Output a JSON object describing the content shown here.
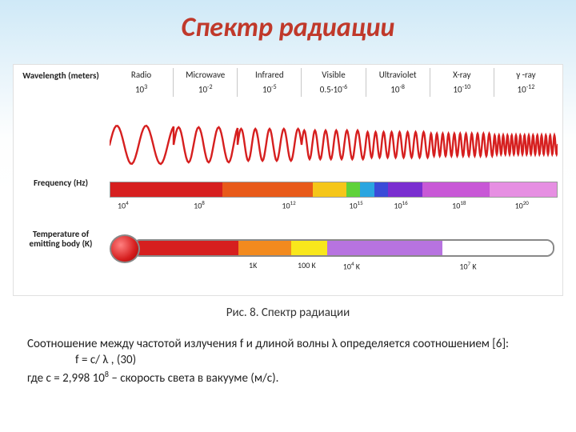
{
  "title": "Спектр радиации",
  "caption": "Рис. 8. Спектр радиации",
  "body": {
    "line1": "Соотношение между частотой излучения   f   и длиной волны   λ   определяется соотношением [6]:",
    "equation": "f = c/ λ ,         (30)",
    "line2_html": "где  c = 2,998 10<sup>8</sup> – скорость света в вакууме (м/с)."
  },
  "labels": {
    "wavelength": "Wavelength (meters)",
    "frequency": "Frequency (Hz)",
    "temperature": "Temperature of emitting body (K)"
  },
  "bands": [
    {
      "name": "Radio",
      "wl_html": "10<sup>3</sup>"
    },
    {
      "name": "Microwave",
      "wl_html": "10<sup>-2</sup>"
    },
    {
      "name": "Infrared",
      "wl_html": "10<sup>-5</sup>"
    },
    {
      "name": "Visible",
      "wl_html": "0.5·10<sup>-6</sup>"
    },
    {
      "name": "Ultraviolet",
      "wl_html": "10<sup>-8</sup>"
    },
    {
      "name": "X-ray",
      "wl_html": "10<sup>-10</sup>"
    },
    {
      "name": "γ -ray",
      "wl_html": "10<sup>-12</sup>"
    }
  ],
  "wave": {
    "stroke": "#d61f1f",
    "stroke_width": 2.4,
    "segments": [
      {
        "cycles": 2.2,
        "amp": 24
      },
      {
        "cycles": 3.2,
        "amp": 22
      },
      {
        "cycles": 4.5,
        "amp": 20
      },
      {
        "cycles": 6.0,
        "amp": 18
      },
      {
        "cycles": 8.0,
        "amp": 16
      },
      {
        "cycles": 11.0,
        "amp": 14
      },
      {
        "cycles": 15.0,
        "amp": 12
      }
    ]
  },
  "frequency_bar": {
    "segments": [
      {
        "color": "#d61f1f",
        "grow": 2.0
      },
      {
        "color": "#e85a1a",
        "grow": 1.6
      },
      {
        "color": "#f5c61a",
        "grow": 0.6
      },
      {
        "color": "#5fd23a",
        "grow": 0.25
      },
      {
        "color": "#2aa5e0",
        "grow": 0.25
      },
      {
        "color": "#3a4bd8",
        "grow": 0.25
      },
      {
        "color": "#7a2ed0",
        "grow": 0.6
      },
      {
        "color": "#c858d6",
        "grow": 1.2
      },
      {
        "color": "#e68fe2",
        "grow": 1.2
      }
    ],
    "ticks": [
      {
        "pos_pct": 3,
        "html": "10<sup>4</sup>"
      },
      {
        "pos_pct": 20,
        "html": "10<sup>8</sup>"
      },
      {
        "pos_pct": 40,
        "html": "10<sup>12</sup>"
      },
      {
        "pos_pct": 55,
        "html": "10<sup>15</sup>"
      },
      {
        "pos_pct": 65,
        "html": "10<sup>16</sup>"
      },
      {
        "pos_pct": 78,
        "html": "10<sup>18</sup>"
      },
      {
        "pos_pct": 92,
        "html": "10<sup>20</sup>"
      }
    ]
  },
  "thermometer": {
    "segments": [
      {
        "color": "#d61f1f",
        "grow": 2.0
      },
      {
        "color": "#f28a1e",
        "grow": 1.0
      },
      {
        "color": "#f8e71c",
        "grow": 0.7
      },
      {
        "color": "#b773e0",
        "grow": 2.2
      },
      {
        "color": "#ffffff",
        "grow": 2.1
      }
    ],
    "ticks": [
      {
        "pos_pct": 32,
        "html": "1K"
      },
      {
        "pos_pct": 44,
        "html": "100 K"
      },
      {
        "pos_pct": 54,
        "html": "10<sup>4</sup> K"
      },
      {
        "pos_pct": 80,
        "html": "10<sup>7</sup> K"
      }
    ]
  }
}
